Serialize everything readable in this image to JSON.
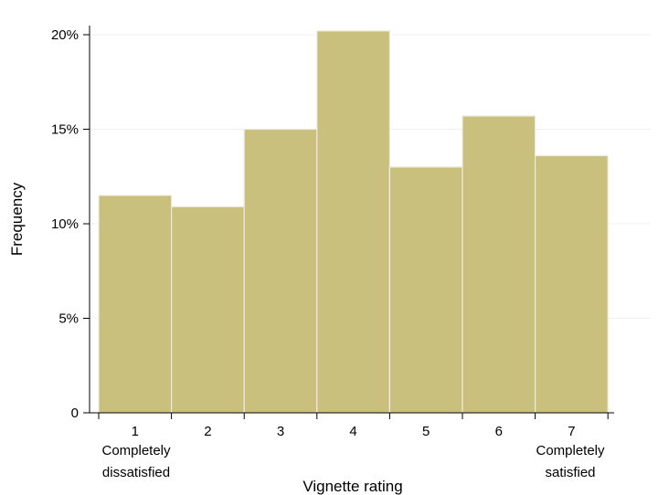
{
  "chart_data": {
    "type": "bar",
    "categories": [
      "1",
      "2",
      "3",
      "4",
      "5",
      "6",
      "7"
    ],
    "values": [
      11.5,
      10.9,
      15.0,
      20.2,
      13.0,
      15.7,
      13.6
    ],
    "value_unit": "percent",
    "ylim": [
      0,
      20
    ],
    "yticks": [
      0,
      5,
      10,
      15,
      20
    ],
    "ytick_labels": [
      "0",
      "5%",
      "10%",
      "15%",
      "20%"
    ],
    "xlabel": "Vignette rating",
    "ylabel": "Frequency",
    "annotations": {
      "low_end": [
        "Completely",
        "dissatisfied"
      ],
      "high_end": [
        "Completely",
        "satisfied"
      ]
    },
    "grid": true,
    "legend": "none",
    "colors": {
      "bar": "#c9c07e",
      "bar_edge": "#eeeae0",
      "grid": "#eef0f3"
    }
  }
}
